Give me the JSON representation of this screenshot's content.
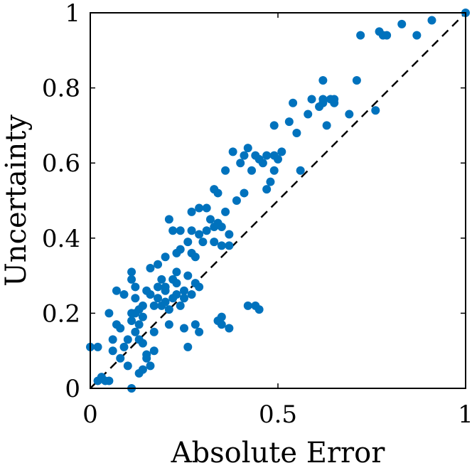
{
  "chart_data": {
    "type": "scatter",
    "title": "",
    "xlabel": "Absolute Error",
    "ylabel": "Uncertainty",
    "xlim": [
      0,
      1
    ],
    "ylim": [
      0,
      1
    ],
    "xticks": [
      {
        "value": 0,
        "label": "0"
      },
      {
        "value": 0.5,
        "label": "0.5"
      },
      {
        "value": 1,
        "label": "1"
      }
    ],
    "yticks": [
      {
        "value": 0,
        "label": "0"
      },
      {
        "value": 0.2,
        "label": "0.2"
      },
      {
        "value": 0.4,
        "label": "0.4"
      },
      {
        "value": 0.6,
        "label": "0.6"
      },
      {
        "value": 0.8,
        "label": "0.8"
      },
      {
        "value": 1,
        "label": "1"
      }
    ],
    "grid": false,
    "legend": "none",
    "reference_line": {
      "style": "dashed",
      "color": "#000000",
      "from": [
        0,
        0
      ],
      "to": [
        1,
        1
      ]
    },
    "marker_color": "#0072BD",
    "points": [
      [
        0.0,
        0.11
      ],
      [
        0.02,
        0.11
      ],
      [
        0.02,
        0.02
      ],
      [
        0.03,
        0.03
      ],
      [
        0.04,
        0.02
      ],
      [
        0.05,
        0.02
      ],
      [
        0.05,
        0.2
      ],
      [
        0.06,
        0.1
      ],
      [
        0.06,
        0.13
      ],
      [
        0.07,
        0.17
      ],
      [
        0.07,
        0.26
      ],
      [
        0.08,
        0.16
      ],
      [
        0.08,
        0.08
      ],
      [
        0.09,
        0.25
      ],
      [
        0.09,
        0.11
      ],
      [
        0.1,
        0.06
      ],
      [
        0.1,
        0.13
      ],
      [
        0.11,
        0.29
      ],
      [
        0.11,
        0.31
      ],
      [
        0.11,
        0.2
      ],
      [
        0.11,
        0.18
      ],
      [
        0.11,
        0.0
      ],
      [
        0.12,
        0.24
      ],
      [
        0.12,
        0.15
      ],
      [
        0.12,
        0.27
      ],
      [
        0.12,
        0.2
      ],
      [
        0.13,
        0.21
      ],
      [
        0.13,
        0.17
      ],
      [
        0.13,
        0.13
      ],
      [
        0.13,
        0.04
      ],
      [
        0.14,
        0.12
      ],
      [
        0.14,
        0.22
      ],
      [
        0.14,
        0.19
      ],
      [
        0.14,
        0.05
      ],
      [
        0.15,
        0.09
      ],
      [
        0.15,
        0.08
      ],
      [
        0.15,
        0.26
      ],
      [
        0.16,
        0.25
      ],
      [
        0.16,
        0.32
      ],
      [
        0.16,
        0.06
      ],
      [
        0.17,
        0.22
      ],
      [
        0.17,
        0.15
      ],
      [
        0.17,
        0.1
      ],
      [
        0.18,
        0.24
      ],
      [
        0.18,
        0.27
      ],
      [
        0.18,
        0.33
      ],
      [
        0.19,
        0.22
      ],
      [
        0.19,
        0.29
      ],
      [
        0.2,
        0.26
      ],
      [
        0.2,
        0.27
      ],
      [
        0.2,
        0.23
      ],
      [
        0.2,
        0.35
      ],
      [
        0.21,
        0.17
      ],
      [
        0.21,
        0.21
      ],
      [
        0.21,
        0.45
      ],
      [
        0.22,
        0.24
      ],
      [
        0.22,
        0.29
      ],
      [
        0.22,
        0.42
      ],
      [
        0.23,
        0.28
      ],
      [
        0.23,
        0.36
      ],
      [
        0.23,
        0.31
      ],
      [
        0.23,
        0.25
      ],
      [
        0.24,
        0.37
      ],
      [
        0.24,
        0.22
      ],
      [
        0.24,
        0.42
      ],
      [
        0.25,
        0.26
      ],
      [
        0.25,
        0.16
      ],
      [
        0.25,
        0.24
      ],
      [
        0.26,
        0.39
      ],
      [
        0.26,
        0.3
      ],
      [
        0.26,
        0.11
      ],
      [
        0.27,
        0.47
      ],
      [
        0.27,
        0.25
      ],
      [
        0.27,
        0.42
      ],
      [
        0.27,
        0.36
      ],
      [
        0.28,
        0.35
      ],
      [
        0.28,
        0.28
      ],
      [
        0.28,
        0.17
      ],
      [
        0.29,
        0.27
      ],
      [
        0.29,
        0.15
      ],
      [
        0.29,
        0.48
      ],
      [
        0.29,
        0.41
      ],
      [
        0.3,
        0.39
      ],
      [
        0.31,
        0.48
      ],
      [
        0.31,
        0.42
      ],
      [
        0.32,
        0.45
      ],
      [
        0.33,
        0.43
      ],
      [
        0.33,
        0.53
      ],
      [
        0.33,
        0.39
      ],
      [
        0.34,
        0.44
      ],
      [
        0.34,
        0.52
      ],
      [
        0.34,
        0.18
      ],
      [
        0.35,
        0.43
      ],
      [
        0.35,
        0.19
      ],
      [
        0.35,
        0.17
      ],
      [
        0.35,
        0.38
      ],
      [
        0.36,
        0.47
      ],
      [
        0.36,
        0.58
      ],
      [
        0.37,
        0.38
      ],
      [
        0.37,
        0.16
      ],
      [
        0.37,
        0.41
      ],
      [
        0.38,
        0.63
      ],
      [
        0.39,
        0.5
      ],
      [
        0.4,
        0.6
      ],
      [
        0.41,
        0.52
      ],
      [
        0.41,
        0.62
      ],
      [
        0.42,
        0.64
      ],
      [
        0.42,
        0.22
      ],
      [
        0.43,
        0.58
      ],
      [
        0.44,
        0.62
      ],
      [
        0.44,
        0.22
      ],
      [
        0.45,
        0.61
      ],
      [
        0.45,
        0.21
      ],
      [
        0.46,
        0.6
      ],
      [
        0.47,
        0.62
      ],
      [
        0.47,
        0.53
      ],
      [
        0.48,
        0.55
      ],
      [
        0.49,
        0.58
      ],
      [
        0.49,
        0.7
      ],
      [
        0.49,
        0.62
      ],
      [
        0.5,
        0.61
      ],
      [
        0.51,
        0.63
      ],
      [
        0.53,
        0.71
      ],
      [
        0.54,
        0.76
      ],
      [
        0.55,
        0.68
      ],
      [
        0.56,
        0.58
      ],
      [
        0.58,
        0.73
      ],
      [
        0.59,
        0.77
      ],
      [
        0.61,
        0.75
      ],
      [
        0.62,
        0.77
      ],
      [
        0.62,
        0.82
      ],
      [
        0.62,
        0.76
      ],
      [
        0.63,
        0.7
      ],
      [
        0.64,
        0.77
      ],
      [
        0.65,
        0.76
      ],
      [
        0.65,
        0.77
      ],
      [
        0.69,
        0.73
      ],
      [
        0.71,
        0.82
      ],
      [
        0.72,
        0.94
      ],
      [
        0.76,
        0.74
      ],
      [
        0.77,
        0.95
      ],
      [
        0.78,
        0.94
      ],
      [
        0.79,
        0.94
      ],
      [
        0.83,
        0.97
      ],
      [
        0.87,
        0.94
      ],
      [
        0.91,
        0.98
      ],
      [
        1.0,
        1.0
      ]
    ]
  }
}
